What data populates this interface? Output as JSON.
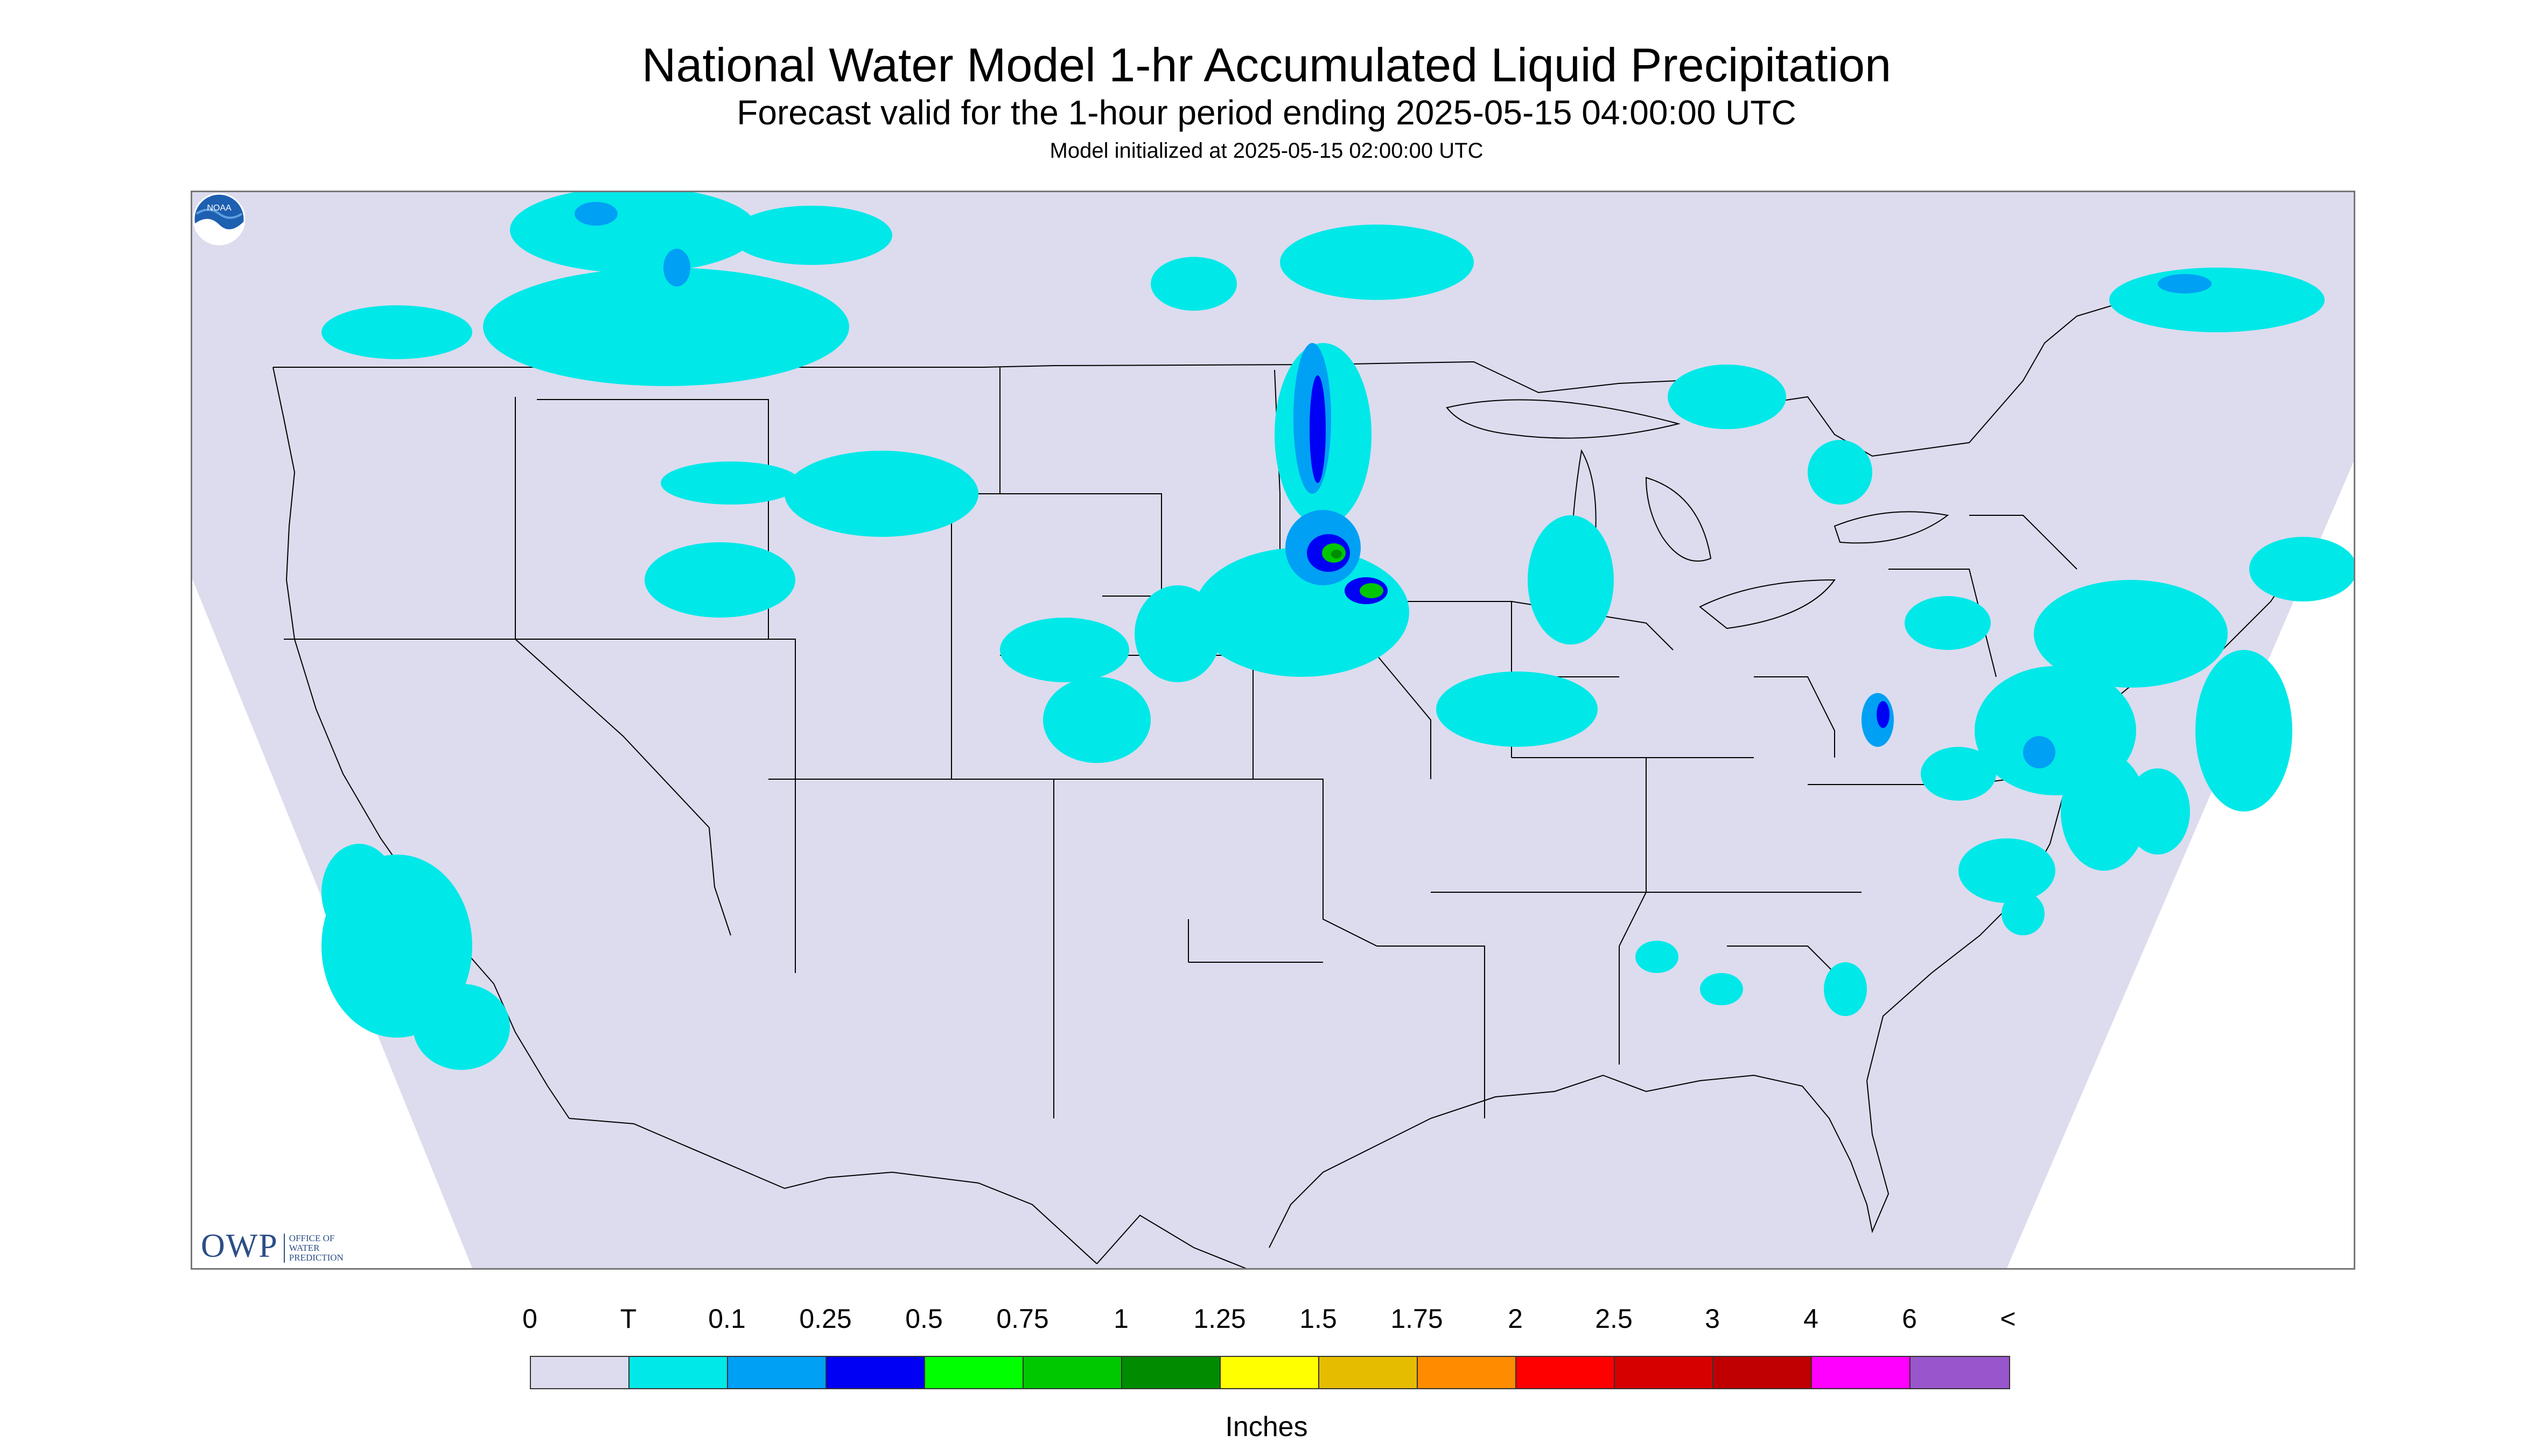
{
  "title": "National Water Model 1-hr Accumulated Liquid Precipitation",
  "subtitle": "Forecast valid for the 1-hour period ending 2025-05-15 04:00:00 UTC",
  "init": "Model initialized at 2025-05-15 02:00:00 UTC",
  "map": {
    "background_color": "#dcdcee",
    "outside_color": "#ffffff",
    "region": "Contiguous United States",
    "precip_features": [
      {
        "area": "Western Nebraska / South Dakota band",
        "max_category": "1"
      },
      {
        "area": "Montana / North Dakota",
        "max_category": "0.1"
      },
      {
        "area": "Mid-Atlantic / Virginia",
        "max_category": "0.25"
      },
      {
        "area": "Northeast",
        "max_category": "0.1"
      },
      {
        "area": "Northern California",
        "max_category": "0.1"
      }
    ]
  },
  "logos": {
    "owp_text": "OWP",
    "owp_sub": [
      "OFFICE OF",
      "WATER",
      "PREDICTION"
    ],
    "noaa_text": "NOAA"
  },
  "legend": {
    "labels": [
      "0",
      "T",
      "0.1",
      "0.25",
      "0.5",
      "0.75",
      "1",
      "1.25",
      "1.5",
      "1.75",
      "2",
      "2.5",
      "3",
      "4",
      "6",
      "<"
    ],
    "colors": [
      "#dcdcee",
      "#00e8e8",
      "#00a0f5",
      "#0000f5",
      "#00ff00",
      "#00c800",
      "#008c00",
      "#ffff00",
      "#e6bc00",
      "#ff8c00",
      "#ff0000",
      "#d70000",
      "#c00000",
      "#ff00ff",
      "#9955cc"
    ],
    "units": "Inches"
  }
}
